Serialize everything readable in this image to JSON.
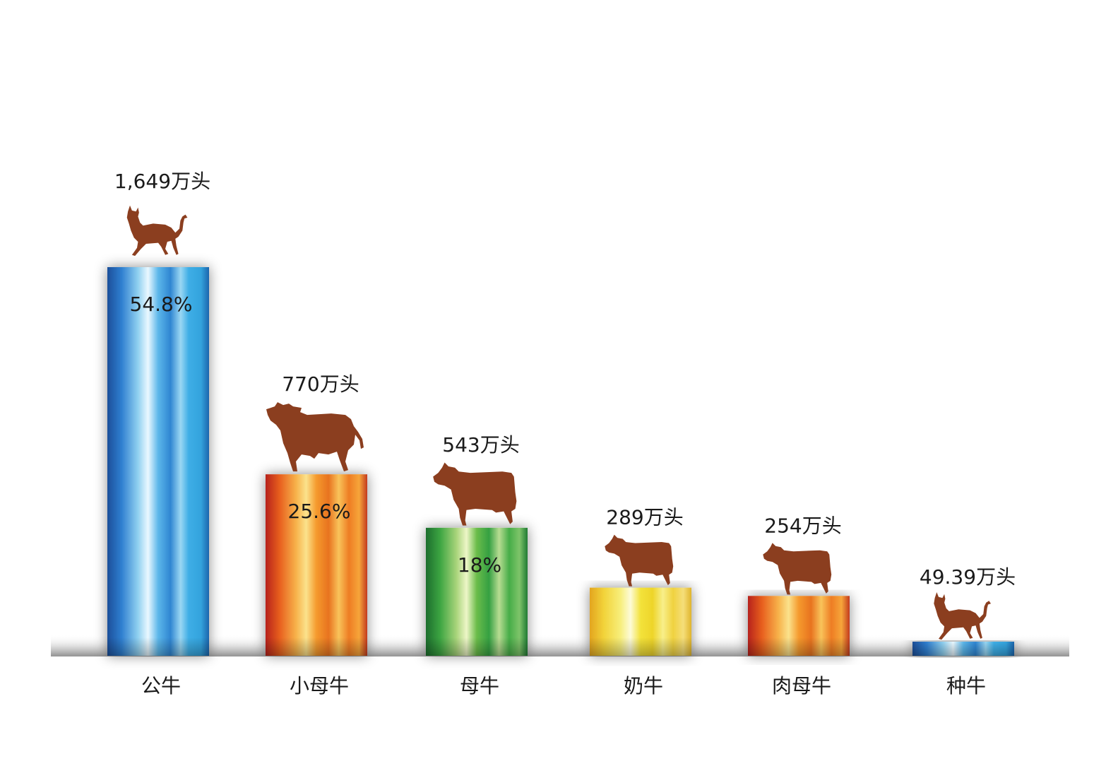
{
  "chart_data": {
    "type": "bar",
    "categories": [
      "公牛",
      "小母牛",
      "母牛",
      "奶牛",
      "肉母牛",
      "种牛"
    ],
    "values": [
      1649,
      770,
      543,
      289,
      254,
      49.39
    ],
    "value_labels": [
      "1,649万头",
      "770万头",
      "543万头",
      "289万头",
      "254万头",
      "49.39万头"
    ],
    "percent_labels": [
      "54.8%",
      "25.6%",
      "18%",
      "",
      "",
      ""
    ],
    "unit": "万头",
    "ylim": [
      0,
      1649
    ],
    "bar_palettes": [
      "blue",
      "orange",
      "green",
      "yellow",
      "orange",
      "blue"
    ],
    "icons": [
      "bull-icon",
      "heifer-icon",
      "cow-icon",
      "dairy-cow-icon",
      "beef-cow-icon",
      "breeding-bull-icon"
    ],
    "icon_color": "#8b3e1f"
  }
}
